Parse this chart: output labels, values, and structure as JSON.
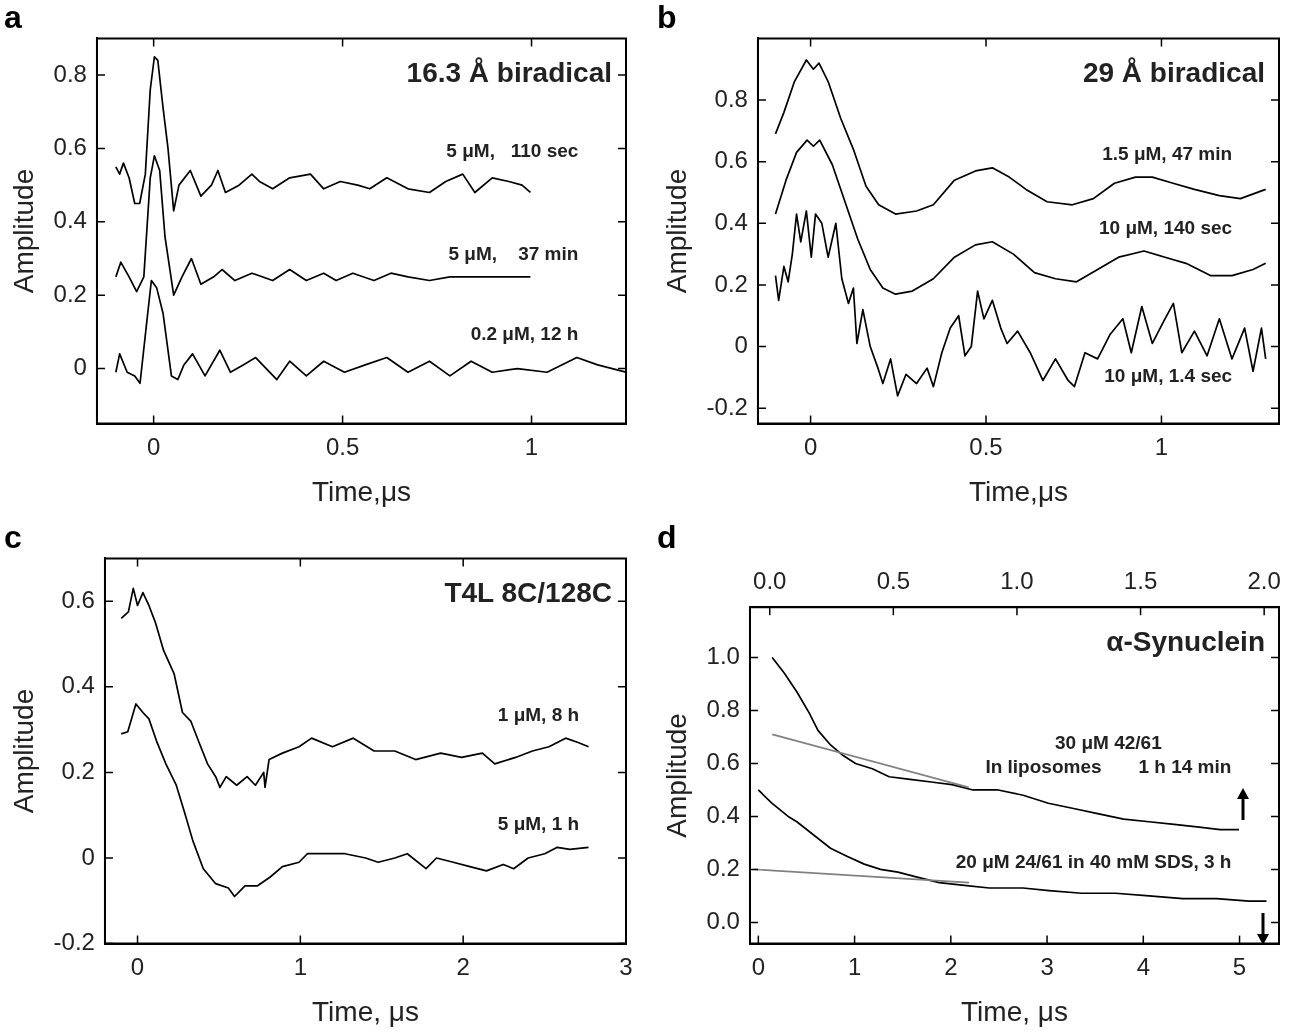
{
  "chart_data": [
    {
      "type": "line",
      "title": "a",
      "xlabel": "Time,μs",
      "ylabel": "Amplitude",
      "xlim": [
        -0.15,
        1.25
      ],
      "ylim": [
        -0.15,
        0.9
      ],
      "xticks": [
        0,
        0.5,
        1
      ],
      "yticks": [
        0,
        0.2,
        0.4,
        0.6,
        0.8
      ],
      "annotations": [
        "16.3 Å biradical"
      ],
      "legend": "right",
      "series": [
        {
          "name": "5 μM,   110 sec",
          "color": "#000000",
          "x": [
            -0.1,
            -0.09,
            -0.08,
            -0.065,
            -0.05,
            -0.037,
            -0.022,
            -0.009,
            0.002,
            0.011,
            0.025,
            0.038,
            0.053,
            0.067,
            0.097,
            0.125,
            0.153,
            0.17,
            0.19,
            0.226,
            0.26,
            0.28,
            0.315,
            0.36,
            0.415,
            0.45,
            0.494,
            0.54,
            0.572,
            0.617,
            0.673,
            0.73,
            0.773,
            0.818,
            0.85,
            0.896,
            0.94,
            0.975,
            0.997
          ],
          "values": [
            0.55,
            0.53,
            0.56,
            0.52,
            0.45,
            0.45,
            0.53,
            0.76,
            0.85,
            0.84,
            0.71,
            0.6,
            0.43,
            0.5,
            0.54,
            0.47,
            0.5,
            0.54,
            0.48,
            0.5,
            0.53,
            0.51,
            0.49,
            0.52,
            0.53,
            0.49,
            0.51,
            0.5,
            0.49,
            0.52,
            0.49,
            0.48,
            0.51,
            0.53,
            0.48,
            0.52,
            0.51,
            0.5,
            0.48
          ]
        },
        {
          "name": "5 μM,    37 min",
          "color": "#000000",
          "x": [
            -0.1,
            -0.087,
            -0.065,
            -0.045,
            -0.026,
            -0.009,
            0.002,
            0.016,
            0.03,
            0.053,
            0.075,
            0.1,
            0.125,
            0.159,
            0.181,
            0.215,
            0.26,
            0.315,
            0.36,
            0.404,
            0.45,
            0.483,
            0.527,
            0.583,
            0.628,
            0.673,
            0.73,
            0.784,
            0.84,
            0.896,
            0.952,
            0.997
          ],
          "values": [
            0.25,
            0.29,
            0.25,
            0.21,
            0.25,
            0.52,
            0.58,
            0.54,
            0.36,
            0.2,
            0.25,
            0.3,
            0.23,
            0.25,
            0.27,
            0.24,
            0.26,
            0.24,
            0.27,
            0.24,
            0.26,
            0.24,
            0.26,
            0.24,
            0.26,
            0.25,
            0.24,
            0.25,
            0.25,
            0.25,
            0.25,
            0.25
          ]
        },
        {
          "name": "0.2 μM, 12 h",
          "color": "#000000",
          "x": [
            -0.1,
            -0.09,
            -0.07,
            -0.05,
            -0.036,
            -0.02,
            -0.006,
            0.008,
            0.025,
            0.047,
            0.064,
            0.08,
            0.103,
            0.136,
            0.175,
            0.203,
            0.237,
            0.27,
            0.326,
            0.36,
            0.404,
            0.45,
            0.505,
            0.56,
            0.617,
            0.673,
            0.73,
            0.784,
            0.84,
            0.896,
            0.963,
            1.041,
            1.12,
            1.175,
            1.25
          ],
          "values": [
            -0.01,
            0.04,
            -0.01,
            -0.02,
            -0.04,
            0.11,
            0.24,
            0.22,
            0.15,
            -0.02,
            -0.03,
            0.01,
            0.04,
            -0.02,
            0.05,
            -0.01,
            0.01,
            0.03,
            -0.03,
            0.02,
            -0.02,
            0.02,
            -0.01,
            0.01,
            0.03,
            -0.01,
            0.02,
            -0.02,
            0.02,
            -0.01,
            0,
            -0.01,
            0.03,
            0.01,
            -0.01
          ]
        }
      ]
    },
    {
      "type": "line",
      "title": "b",
      "xlabel": "Time,μs",
      "ylabel": "Amplitude",
      "xlim": [
        -0.15,
        1.335
      ],
      "ylim": [
        -0.25,
        1.0
      ],
      "xticks": [
        0,
        0.5,
        1
      ],
      "yticks": [
        -0.2,
        0,
        0.2,
        0.4,
        0.6,
        0.8
      ],
      "annotations": [
        "29 Å biradical"
      ],
      "legend": "right",
      "series": [
        {
          "name": "1.5 μM, 47 min",
          "color": "#000000",
          "x": [
            -0.1,
            -0.076,
            -0.046,
            -0.012,
            0.008,
            0.024,
            0.05,
            0.086,
            0.122,
            0.158,
            0.194,
            0.242,
            0.302,
            0.35,
            0.41,
            0.47,
            0.518,
            0.566,
            0.614,
            0.674,
            0.746,
            0.806,
            0.866,
            0.926,
            0.974,
            1.033,
            1.094,
            1.165,
            1.225,
            1.297
          ],
          "values": [
            0.69,
            0.76,
            0.86,
            0.93,
            0.9,
            0.92,
            0.86,
            0.74,
            0.64,
            0.52,
            0.46,
            0.43,
            0.44,
            0.46,
            0.54,
            0.57,
            0.58,
            0.55,
            0.51,
            0.47,
            0.46,
            0.48,
            0.53,
            0.55,
            0.55,
            0.53,
            0.51,
            0.49,
            0.48,
            0.51
          ]
        },
        {
          "name": "10 μM, 140 sec",
          "color": "#000000",
          "x": [
            -0.1,
            -0.07,
            -0.04,
            -0.01,
            0.008,
            0.026,
            0.062,
            0.098,
            0.134,
            0.17,
            0.206,
            0.242,
            0.29,
            0.35,
            0.41,
            0.47,
            0.518,
            0.578,
            0.638,
            0.698,
            0.758,
            0.818,
            0.878,
            0.95,
            1.01,
            1.07,
            1.141,
            1.201,
            1.261,
            1.297
          ],
          "values": [
            0.43,
            0.54,
            0.63,
            0.67,
            0.65,
            0.67,
            0.59,
            0.47,
            0.35,
            0.25,
            0.19,
            0.17,
            0.18,
            0.22,
            0.29,
            0.33,
            0.34,
            0.3,
            0.24,
            0.22,
            0.21,
            0.25,
            0.29,
            0.31,
            0.29,
            0.27,
            0.23,
            0.23,
            0.25,
            0.27
          ]
        },
        {
          "name": "10 μM, 1.4 sec",
          "color": "#000000",
          "x": [
            -0.1,
            -0.091,
            -0.076,
            -0.064,
            -0.052,
            -0.04,
            -0.028,
            -0.012,
            0.002,
            0.014,
            0.032,
            0.05,
            0.072,
            0.089,
            0.108,
            0.122,
            0.132,
            0.149,
            0.17,
            0.192,
            0.206,
            0.228,
            0.248,
            0.272,
            0.302,
            0.332,
            0.35,
            0.374,
            0.398,
            0.422,
            0.44,
            0.458,
            0.476,
            0.494,
            0.518,
            0.542,
            0.56,
            0.59,
            0.626,
            0.662,
            0.698,
            0.734,
            0.752,
            0.782,
            0.818,
            0.854,
            0.89,
            0.914,
            0.944,
            0.974,
            1.01,
            1.034,
            1.058,
            1.094,
            1.13,
            1.165,
            1.201,
            1.237,
            1.261,
            1.285,
            1.297
          ],
          "values": [
            0.23,
            0.15,
            0.26,
            0.21,
            0.3,
            0.43,
            0.34,
            0.44,
            0.29,
            0.43,
            0.4,
            0.29,
            0.4,
            0.22,
            0.14,
            0.19,
            0.01,
            0.12,
            0,
            -0.07,
            -0.12,
            -0.04,
            -0.16,
            -0.09,
            -0.12,
            -0.07,
            -0.13,
            -0.02,
            0.06,
            0.1,
            -0.03,
            0,
            0.18,
            0.09,
            0.15,
            0.06,
            0.01,
            0.05,
            -0.02,
            -0.11,
            -0.04,
            -0.11,
            -0.13,
            -0.02,
            -0.04,
            0.04,
            0.09,
            -0.02,
            0.13,
            0.01,
            0.09,
            0.14,
            -0.02,
            0.05,
            -0.03,
            0.09,
            -0.04,
            0.06,
            -0.08,
            0.06,
            -0.04
          ]
        }
      ]
    },
    {
      "type": "line",
      "title": "c",
      "xlabel": "Time, μs",
      "ylabel": "Amplitude",
      "xlim": [
        -0.2,
        3
      ],
      "ylim": [
        -0.2,
        0.7
      ],
      "xticks": [
        0,
        1,
        2,
        3
      ],
      "yticks": [
        -0.2,
        0,
        0.2,
        0.4,
        0.6
      ],
      "annotations": [
        "T4L 8C/128C"
      ],
      "legend": "right",
      "series": [
        {
          "name": "1 μM, 8 h",
          "color": "#000000",
          "x": [
            -0.1,
            -0.056,
            -0.026,
            0,
            0.033,
            0.07,
            0.11,
            0.16,
            0.225,
            0.276,
            0.327,
            0.378,
            0.43,
            0.48,
            0.506,
            0.545,
            0.609,
            0.673,
            0.724,
            0.775,
            0.783,
            0.808,
            0.89,
            0.992,
            1.069,
            1.197,
            1.325,
            1.453,
            1.58,
            1.708,
            1.862,
            1.99,
            2.118,
            2.194,
            2.322,
            2.425,
            2.527,
            2.629,
            2.706,
            2.77
          ],
          "values": [
            0.56,
            0.575,
            0.63,
            0.59,
            0.62,
            0.59,
            0.55,
            0.485,
            0.43,
            0.34,
            0.32,
            0.27,
            0.22,
            0.19,
            0.165,
            0.19,
            0.17,
            0.19,
            0.17,
            0.2,
            0.165,
            0.23,
            0.245,
            0.26,
            0.28,
            0.26,
            0.28,
            0.25,
            0.25,
            0.23,
            0.245,
            0.235,
            0.245,
            0.22,
            0.235,
            0.25,
            0.26,
            0.28,
            0.27,
            0.26
          ]
        },
        {
          "name": "5 μM, 1 h",
          "color": "#000000",
          "x": [
            -0.1,
            -0.06,
            -0.01,
            0.033,
            0.07,
            0.12,
            0.174,
            0.238,
            0.29,
            0.34,
            0.404,
            0.48,
            0.558,
            0.596,
            0.66,
            0.737,
            0.813,
            0.89,
            0.992,
            1.043,
            1.146,
            1.274,
            1.401,
            1.478,
            1.58,
            1.657,
            1.772,
            1.836,
            1.939,
            2.041,
            2.143,
            2.246,
            2.31,
            2.399,
            2.501,
            2.578,
            2.655,
            2.77
          ],
          "values": [
            0.29,
            0.295,
            0.36,
            0.34,
            0.325,
            0.27,
            0.22,
            0.17,
            0.105,
            0.04,
            -0.025,
            -0.06,
            -0.07,
            -0.09,
            -0.065,
            -0.065,
            -0.045,
            -0.02,
            -0.01,
            0.01,
            0.01,
            0.01,
            0,
            -0.01,
            0,
            0.01,
            -0.025,
            0,
            -0.01,
            -0.02,
            -0.03,
            -0.015,
            -0.025,
            0,
            0.01,
            0.025,
            0.02,
            0.025
          ]
        }
      ]
    },
    {
      "type": "line",
      "title": "d",
      "xlabel": "Time, μs",
      "ylabel": "Amplitude",
      "xlim": [
        -0.087,
        5.41
      ],
      "x2lim": [
        -0.08,
        2.06
      ],
      "ylim": [
        -0.08,
        1.19
      ],
      "xticks": [
        0,
        1,
        2,
        3,
        4,
        5
      ],
      "x2ticks": [
        {
          "value": 0,
          "label": "0.0"
        },
        {
          "value": 0.5,
          "label": "0.5"
        },
        {
          "value": 1,
          "label": "1.0"
        },
        {
          "value": 1.5,
          "label": "1.5"
        },
        {
          "value": 2,
          "label": "2.0"
        }
      ],
      "yticks": [
        {
          "value": 0,
          "label": "0.0"
        },
        {
          "value": 0.2,
          "label": "0.2"
        },
        {
          "value": 0.4,
          "label": "0.4"
        },
        {
          "value": 0.6,
          "label": "0.6"
        },
        {
          "value": 0.8,
          "label": "0.8"
        },
        {
          "value": 1,
          "label": "1.0"
        }
      ],
      "annotations": [
        "α-Synuclein"
      ],
      "legend": "right",
      "series": [
        {
          "color": "#808080",
          "axis": "x2",
          "x": [
            0.01,
            0.805
          ],
          "values": [
            0.71,
            0.51
          ]
        },
        {
          "color": "#808080",
          "x": [
            -0.04,
            2.19
          ],
          "values": [
            0.2,
            0.15
          ]
        },
        {
          "name": "30 μM 42/61\nIn liposomes       1 h 14 min",
          "color": "#000000",
          "axis": "x2",
          "x": [
            0.01,
            0.06,
            0.11,
            0.16,
            0.195,
            0.246,
            0.297,
            0.347,
            0.415,
            0.483,
            0.568,
            0.653,
            0.737,
            0.822,
            0.924,
            1.025,
            1.127,
            1.229,
            1.331,
            1.432,
            1.534,
            1.636,
            1.737,
            1.822,
            1.898
          ],
          "values": [
            1.0,
            0.94,
            0.87,
            0.79,
            0.725,
            0.67,
            0.63,
            0.6,
            0.58,
            0.55,
            0.54,
            0.53,
            0.52,
            0.5,
            0.5,
            0.48,
            0.45,
            0.43,
            0.41,
            0.39,
            0.38,
            0.37,
            0.36,
            0.35,
            0.35
          ]
        },
        {
          "name": "20 μM 24/61 in 40 mM SDS, 3 h",
          "color": "#000000",
          "x": [
            0,
            0.14,
            0.31,
            0.4,
            0.575,
            0.75,
            0.92,
            1.1,
            1.27,
            1.45,
            1.66,
            1.88,
            2.14,
            2.4,
            2.75,
            3.02,
            3.36,
            3.71,
            4.06,
            4.41,
            4.76,
            5.1,
            5.28
          ],
          "values": [
            0.5,
            0.45,
            0.4,
            0.38,
            0.33,
            0.28,
            0.25,
            0.22,
            0.2,
            0.19,
            0.17,
            0.15,
            0.14,
            0.13,
            0.13,
            0.12,
            0.11,
            0.11,
            0.1,
            0.09,
            0.09,
            0.08,
            0.08
          ]
        }
      ]
    }
  ]
}
